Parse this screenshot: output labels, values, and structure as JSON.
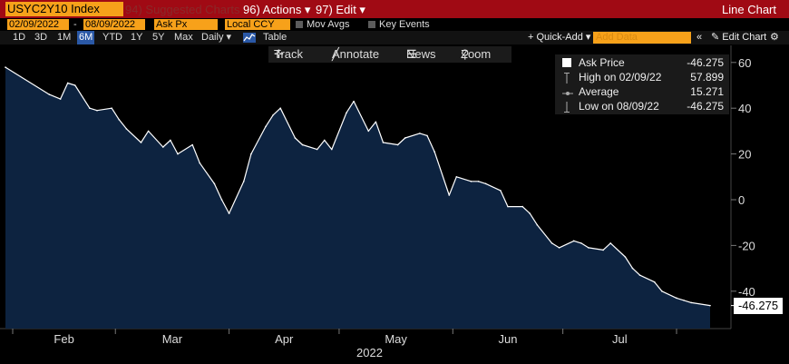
{
  "header": {
    "ticker": "USYC2Y10 Index",
    "suggested": "94) Suggested Charts",
    "actions": "96) Actions ▾",
    "edit": "97) Edit ▾",
    "chart_type": "Line Chart"
  },
  "controls": {
    "date_from": "02/09/2022",
    "date_sep": "-",
    "date_to": "08/09/2022",
    "field": "Ask Px",
    "currency": "Local CCY",
    "mov_avgs": "Mov Avgs",
    "key_events": "Key Events",
    "quick_add": "+ Quick-Add ▾",
    "add_data_placeholder": "Add Data",
    "edit_chart": "Edit Chart",
    "ranges": [
      "1D",
      "3D",
      "1M",
      "6M",
      "YTD",
      "1Y",
      "5Y",
      "Max"
    ],
    "selected_range": "6M",
    "frequency": "Daily ▾",
    "table": "Table"
  },
  "toolbar": {
    "track": "Track",
    "annotate": "Annotate",
    "news": "News",
    "zoom": "Zoom"
  },
  "legend": {
    "series_label": "Ask Price",
    "series_value": "-46.275",
    "high_label": "High on 02/09/22",
    "high_value": "57.899",
    "avg_label": "Average",
    "avg_value": "15.271",
    "low_label": "Low on 08/09/22",
    "low_value": "-46.275"
  },
  "colors": {
    "header_bar": "#a00a14",
    "accent_orange": "#f7a11a",
    "area_fill": "#0d2340",
    "line": "#ffffff",
    "background": "#000000"
  },
  "chart_data": {
    "type": "area",
    "title": "",
    "xlabel": "2022",
    "ylabel": "",
    "ylim": [
      -55,
      65
    ],
    "yticks": [
      60,
      40,
      20,
      0,
      -20,
      -40
    ],
    "xticks": [
      "Feb",
      "Mar",
      "Apr",
      "May",
      "Jun",
      "Jul"
    ],
    "last_value_label": "-46.275",
    "x": [
      "2022-02-09",
      "2022-02-11",
      "2022-02-14",
      "2022-02-16",
      "2022-02-18",
      "2022-02-22",
      "2022-02-24",
      "2022-02-28",
      "2022-03-02",
      "2022-03-04",
      "2022-03-08",
      "2022-03-10",
      "2022-03-14",
      "2022-03-16",
      "2022-03-18",
      "2022-03-22",
      "2022-03-24",
      "2022-03-28",
      "2022-03-30",
      "2022-04-01",
      "2022-04-05",
      "2022-04-07",
      "2022-04-11",
      "2022-04-13",
      "2022-04-15",
      "2022-04-19",
      "2022-04-21",
      "2022-04-25",
      "2022-04-27",
      "2022-04-29",
      "2022-05-03",
      "2022-05-05",
      "2022-05-09",
      "2022-05-11",
      "2022-05-13",
      "2022-05-17",
      "2022-05-19",
      "2022-05-23",
      "2022-05-25",
      "2022-05-27",
      "2022-05-31",
      "2022-06-02",
      "2022-06-06",
      "2022-06-08",
      "2022-06-10",
      "2022-06-14",
      "2022-06-16",
      "2022-06-20",
      "2022-06-22",
      "2022-06-24",
      "2022-06-28",
      "2022-06-30",
      "2022-07-04",
      "2022-07-06",
      "2022-07-08",
      "2022-07-12",
      "2022-07-14",
      "2022-07-18",
      "2022-07-20",
      "2022-07-22",
      "2022-07-26",
      "2022-07-28",
      "2022-08-01",
      "2022-08-03",
      "2022-08-05",
      "2022-08-09"
    ],
    "series": [
      {
        "values": [
          57.9,
          46,
          44,
          51,
          50,
          40,
          39,
          40,
          35,
          31,
          25,
          30,
          23,
          26,
          20,
          24,
          16,
          7,
          0,
          -6,
          8,
          20,
          32,
          37,
          40,
          27,
          24,
          22,
          26,
          22,
          38,
          43,
          30,
          34,
          25,
          24,
          27,
          29,
          28,
          21,
          2,
          10,
          8,
          8,
          7,
          4,
          -3,
          -3,
          -6,
          -11,
          -19,
          -21,
          -18,
          -19,
          -21,
          -22,
          -19,
          -25,
          -30,
          -33,
          -36,
          -40,
          -43,
          -44,
          -45,
          -46.275
        ]
      }
    ]
  }
}
